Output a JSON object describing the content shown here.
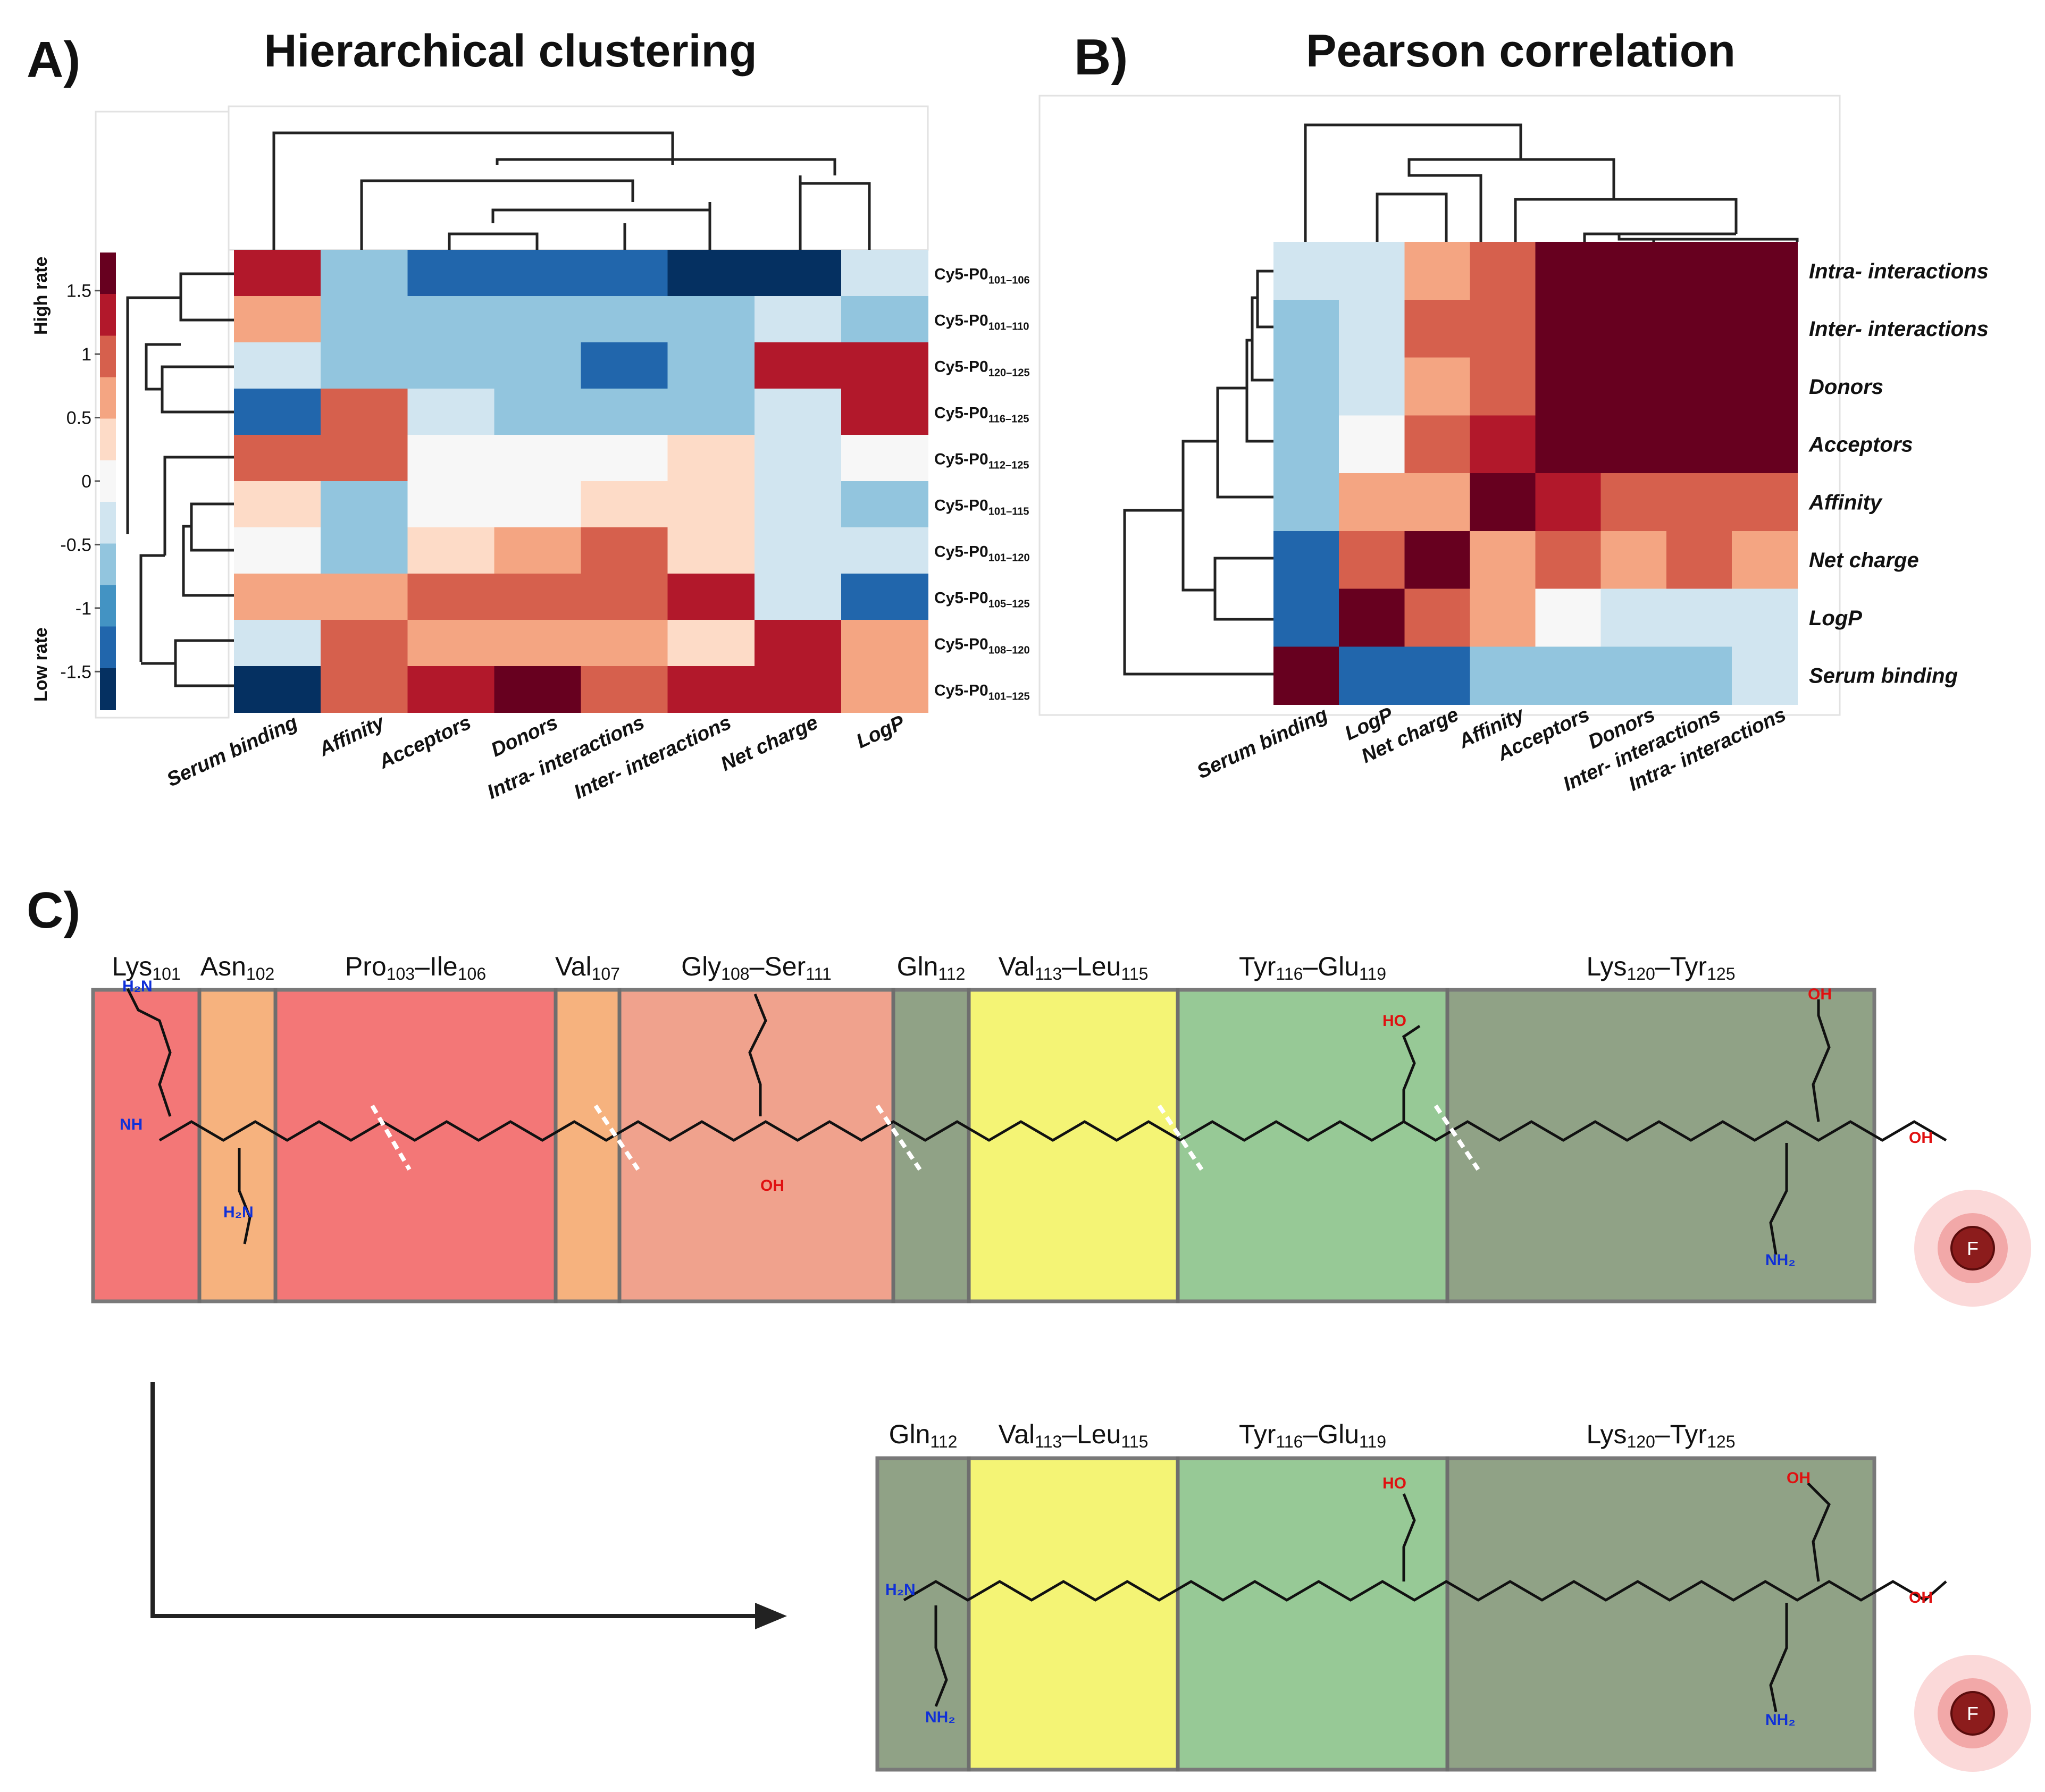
{
  "panel_a": {
    "letter": "A)",
    "title": "Hierarchical clustering",
    "legend": {
      "high_label": "High rate",
      "low_label": "Low rate",
      "ticks": [
        "1.5",
        "1",
        "0.5",
        "0",
        "-0.5",
        "-1",
        "-1.5"
      ],
      "colors": [
        "#67001f",
        "#b2182b",
        "#d6604d",
        "#f4a582",
        "#fddbc7",
        "#f7f7f7",
        "#d1e5f0",
        "#92c5de",
        "#4393c3",
        "#2166ac",
        "#053061"
      ]
    }
  },
  "panel_b": {
    "letter": "B)",
    "title": "Pearson correlation"
  },
  "panel_c": {
    "letter": "C)",
    "fluor_label": "F",
    "top_row": [
      {
        "name": "Lys",
        "sub": "101",
        "color": "#f26c6c"
      },
      {
        "name": "Asn",
        "sub": "102",
        "color": "#f6ac74"
      },
      {
        "name": "Pro",
        "sub": "103",
        "name2": "Ile",
        "sub2": "106",
        "color": "#f26c6c"
      },
      {
        "name": "Val",
        "sub": "107",
        "color": "#f6ac74"
      },
      {
        "name": "Gly",
        "sub": "108",
        "name2": "Ser",
        "sub2": "111",
        "color": "#ef9b84"
      },
      {
        "name": "Gln",
        "sub": "112",
        "color": "#879b7c"
      },
      {
        "name": "Val",
        "sub": "113",
        "name2": "Leu",
        "sub2": "115",
        "color": "#f4f46a"
      },
      {
        "name": "Tyr",
        "sub": "116",
        "name2": "Glu",
        "sub2": "119",
        "color": "#8fc58e"
      },
      {
        "name": "Lys",
        "sub": "120",
        "name2": "Tyr",
        "sub2": "125",
        "color": "#879b7c"
      }
    ],
    "bottom_row": [
      {
        "name": "Gln",
        "sub": "112",
        "color": "#879b7c"
      },
      {
        "name": "Val",
        "sub": "113",
        "name2": "Leu",
        "sub2": "115",
        "color": "#f4f46a"
      },
      {
        "name": "Tyr",
        "sub": "116",
        "name2": "Glu",
        "sub2": "119",
        "color": "#8fc58e"
      },
      {
        "name": "Lys",
        "sub": "120",
        "name2": "Tyr",
        "sub2": "125",
        "color": "#879b7c"
      }
    ]
  },
  "chart_data": [
    {
      "type": "heatmap",
      "title": "Hierarchical clustering",
      "scale": "z-score",
      "color_range": [
        -1.8,
        1.8
      ],
      "columns": [
        "Serum binding",
        "Affinity",
        "Acceptors",
        "Donors",
        "Intra- interactions",
        "Inter- interactions",
        "Net charge",
        "LogP"
      ],
      "rows": [
        {
          "label": "Cy5-P0",
          "sub": "101–106"
        },
        {
          "label": "Cy5-P0",
          "sub": "101–110"
        },
        {
          "label": "Cy5-P0",
          "sub": "120–125"
        },
        {
          "label": "Cy5-P0",
          "sub": "116–125"
        },
        {
          "label": "Cy5-P0",
          "sub": "112–125"
        },
        {
          "label": "Cy5-P0",
          "sub": "101–115"
        },
        {
          "label": "Cy5-P0",
          "sub": "101–120"
        },
        {
          "label": "Cy5-P0",
          "sub": "105–125"
        },
        {
          "label": "Cy5-P0",
          "sub": "108–120"
        },
        {
          "label": "Cy5-P0",
          "sub": "101–125"
        }
      ],
      "values": [
        [
          1.3,
          -0.9,
          -1.3,
          -1.3,
          -1.3,
          -1.7,
          -1.7,
          -0.3
        ],
        [
          0.6,
          -0.9,
          -0.9,
          -0.6,
          -0.6,
          -0.6,
          -0.3,
          -0.9
        ],
        [
          -0.3,
          -0.9,
          -0.9,
          -0.9,
          -1.3,
          -0.6,
          1.3,
          1.3
        ],
        [
          -1.3,
          1.0,
          -0.3,
          -0.6,
          -0.6,
          -0.6,
          -0.3,
          1.3
        ],
        [
          1.0,
          1.0,
          0.0,
          0.0,
          0.0,
          0.3,
          -0.3,
          0.0
        ],
        [
          0.3,
          -0.9,
          0.0,
          0.0,
          0.3,
          0.3,
          -0.3,
          -0.9
        ],
        [
          0.0,
          -0.9,
          0.3,
          0.6,
          1.0,
          0.3,
          -0.3,
          -0.3
        ],
        [
          0.6,
          0.6,
          1.0,
          1.0,
          1.0,
          1.3,
          -0.3,
          -1.3
        ],
        [
          -0.3,
          1.0,
          0.6,
          0.6,
          0.6,
          0.3,
          1.3,
          0.6
        ],
        [
          -1.7,
          1.0,
          1.3,
          1.7,
          1.0,
          1.3,
          1.3,
          0.6
        ]
      ]
    },
    {
      "type": "heatmap",
      "title": "Pearson correlation",
      "color_range": [
        -1,
        1
      ],
      "columns": [
        "Serum binding",
        "LogP",
        "Net charge",
        "Affinity",
        "Acceptors",
        "Donors",
        "Inter- interactions",
        "Intra- interactions"
      ],
      "rows": [
        "Intra- interactions",
        "Inter- interactions",
        "Donors",
        "Acceptors",
        "Affinity",
        "Net charge",
        "LogP",
        "Serum binding"
      ],
      "values": [
        [
          -0.2,
          -0.2,
          0.4,
          0.55,
          1.0,
          1.0,
          1.0,
          1.0
        ],
        [
          -0.35,
          -0.2,
          0.55,
          0.55,
          1.0,
          1.0,
          1.0,
          1.0
        ],
        [
          -0.35,
          -0.2,
          0.4,
          0.55,
          1.0,
          1.0,
          1.0,
          1.0
        ],
        [
          -0.35,
          0.0,
          0.55,
          0.75,
          1.0,
          1.0,
          1.0,
          1.0
        ],
        [
          -0.35,
          0.4,
          0.4,
          1.0,
          0.75,
          0.55,
          0.55,
          0.55
        ],
        [
          -0.75,
          0.55,
          1.0,
          0.4,
          0.55,
          0.4,
          0.55,
          0.4
        ],
        [
          -0.75,
          1.0,
          0.55,
          0.4,
          0.0,
          -0.2,
          -0.2,
          -0.2
        ],
        [
          1.0,
          -0.75,
          -0.75,
          -0.35,
          -0.35,
          -0.35,
          -0.35,
          -0.2
        ]
      ]
    }
  ]
}
